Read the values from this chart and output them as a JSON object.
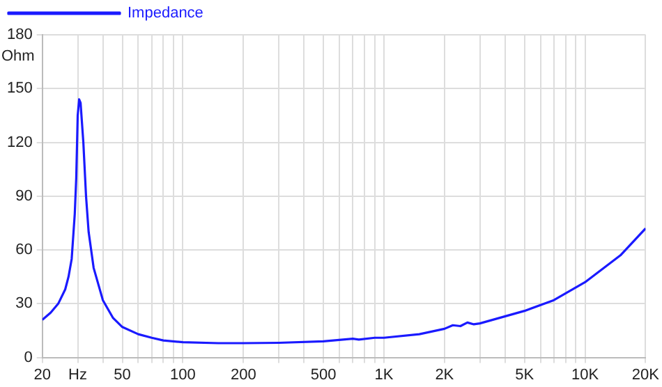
{
  "chart_data": {
    "type": "line",
    "ylabel": "Ohm",
    "log": "x",
    "grid": true,
    "legend": "top",
    "marker": "none",
    "line_style": "solid",
    "xlim": [
      20,
      20000
    ],
    "ylim": [
      0,
      180
    ],
    "xticks": [
      20,
      {
        "value": 30,
        "label": "Hz"
      },
      50,
      100,
      200,
      500,
      {
        "value": 1000,
        "label": "1K"
      },
      {
        "value": 2000,
        "label": "2K"
      },
      {
        "value": 5000,
        "label": "5K"
      },
      {
        "value": 10000,
        "label": "10K"
      },
      {
        "value": 20000,
        "label": "20K"
      }
    ],
    "yticks": [
      0,
      30,
      60,
      90,
      120,
      150,
      180
    ],
    "x": [
      20,
      22,
      24,
      26,
      27,
      28,
      29,
      29.5,
      30,
      30.5,
      31,
      32,
      33,
      34,
      36,
      40,
      45,
      50,
      60,
      70,
      80,
      100,
      150,
      200,
      300,
      500,
      700,
      750,
      900,
      1000,
      1500,
      2000,
      2200,
      2400,
      2600,
      2800,
      3000,
      5000,
      7000,
      10000,
      15000,
      20000
    ],
    "series": [
      {
        "name": "Impedance",
        "color": "#1a1aff",
        "values": [
          21,
          25,
          30,
          38,
          45,
          55,
          80,
          100,
          135,
          144,
          142,
          120,
          90,
          70,
          50,
          32,
          22,
          17,
          13,
          11,
          9.5,
          8.5,
          8,
          8,
          8.2,
          9,
          10.5,
          10,
          11,
          11,
          13,
          16,
          18,
          17.5,
          19.5,
          18.5,
          19,
          26,
          32,
          42,
          57,
          72
        ]
      }
    ]
  }
}
